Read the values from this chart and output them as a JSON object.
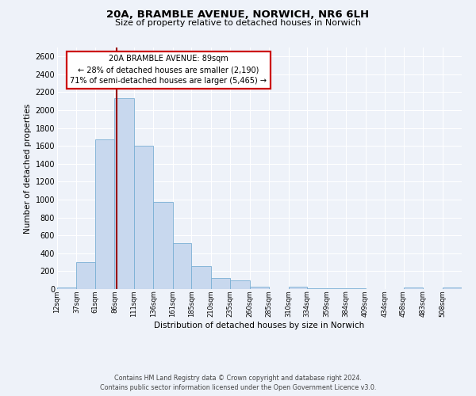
{
  "title": "20A, BRAMBLE AVENUE, NORWICH, NR6 6LH",
  "subtitle": "Size of property relative to detached houses in Norwich",
  "xlabel": "Distribution of detached houses by size in Norwich",
  "ylabel": "Number of detached properties",
  "bar_color": "#c8d8ee",
  "bar_edge_color": "#7aafd4",
  "background_color": "#eef2f9",
  "grid_color": "#ffffff",
  "categories": [
    "12sqm",
    "37sqm",
    "61sqm",
    "86sqm",
    "111sqm",
    "136sqm",
    "161sqm",
    "185sqm",
    "210sqm",
    "235sqm",
    "260sqm",
    "285sqm",
    "310sqm",
    "334sqm",
    "359sqm",
    "384sqm",
    "409sqm",
    "434sqm",
    "458sqm",
    "483sqm",
    "508sqm"
  ],
  "values": [
    20,
    300,
    1670,
    2130,
    1600,
    970,
    510,
    255,
    125,
    100,
    30,
    0,
    30,
    5,
    10,
    5,
    0,
    0,
    20,
    0,
    20
  ],
  "ylim": [
    0,
    2700
  ],
  "yticks": [
    0,
    200,
    400,
    600,
    800,
    1000,
    1200,
    1400,
    1600,
    1800,
    2000,
    2200,
    2400,
    2600
  ],
  "bin_edges": [
    12,
    37,
    61,
    86,
    111,
    136,
    161,
    185,
    210,
    235,
    260,
    285,
    310,
    334,
    359,
    384,
    409,
    434,
    458,
    483,
    508,
    533
  ],
  "annotation_title": "20A BRAMBLE AVENUE: 89sqm",
  "annotation_line1": "← 28% of detached houses are smaller (2,190)",
  "annotation_line2": "71% of semi-detached houses are larger (5,465) →",
  "annotation_box_color": "#ffffff",
  "annotation_box_edge": "#cc0000",
  "vline_color": "#990000",
  "vline_x": 89,
  "footer1": "Contains HM Land Registry data © Crown copyright and database right 2024.",
  "footer2": "Contains public sector information licensed under the Open Government Licence v3.0."
}
